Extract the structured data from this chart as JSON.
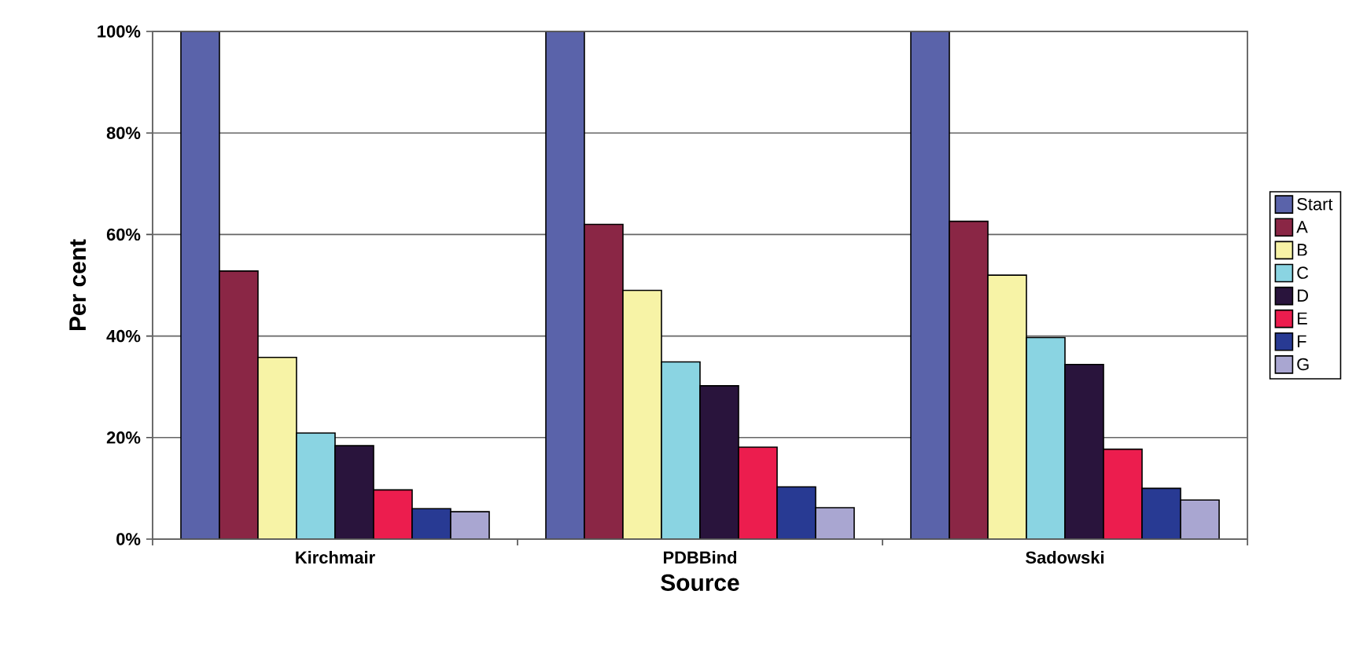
{
  "chart_data": {
    "type": "bar",
    "xlabel": "Source",
    "ylabel": "Per cent",
    "categories": [
      "Kirchmair",
      "PDBBind",
      "Sadowski"
    ],
    "series": [
      {
        "name": "Start",
        "color": "#5a63aa",
        "values": [
          100,
          100,
          100
        ]
      },
      {
        "name": "A",
        "color": "#8a2645",
        "values": [
          52.8,
          62,
          62.6
        ]
      },
      {
        "name": "B",
        "color": "#f7f3a6",
        "values": [
          35.8,
          49,
          52
        ]
      },
      {
        "name": "C",
        "color": "#8ad4e2",
        "values": [
          20.9,
          34.9,
          39.7
        ]
      },
      {
        "name": "D",
        "color": "#29143c",
        "values": [
          18.4,
          30.2,
          34.4
        ]
      },
      {
        "name": "E",
        "color": "#ec1d4e",
        "values": [
          9.7,
          18.1,
          17.7
        ]
      },
      {
        "name": "F",
        "color": "#283a93",
        "values": [
          6,
          10.3,
          10
        ]
      },
      {
        "name": "G",
        "color": "#a9a6d1",
        "values": [
          5.4,
          6.2,
          7.7
        ]
      }
    ],
    "ylim": [
      0,
      100
    ],
    "yticks": [
      {
        "value": 0,
        "label": "0%"
      },
      {
        "value": 20,
        "label": "20%"
      },
      {
        "value": 40,
        "label": "40%"
      },
      {
        "value": 60,
        "label": "60%"
      },
      {
        "value": 80,
        "label": "80%"
      },
      {
        "value": 100,
        "label": "100%"
      }
    ],
    "grid": "y",
    "legend": "right"
  }
}
